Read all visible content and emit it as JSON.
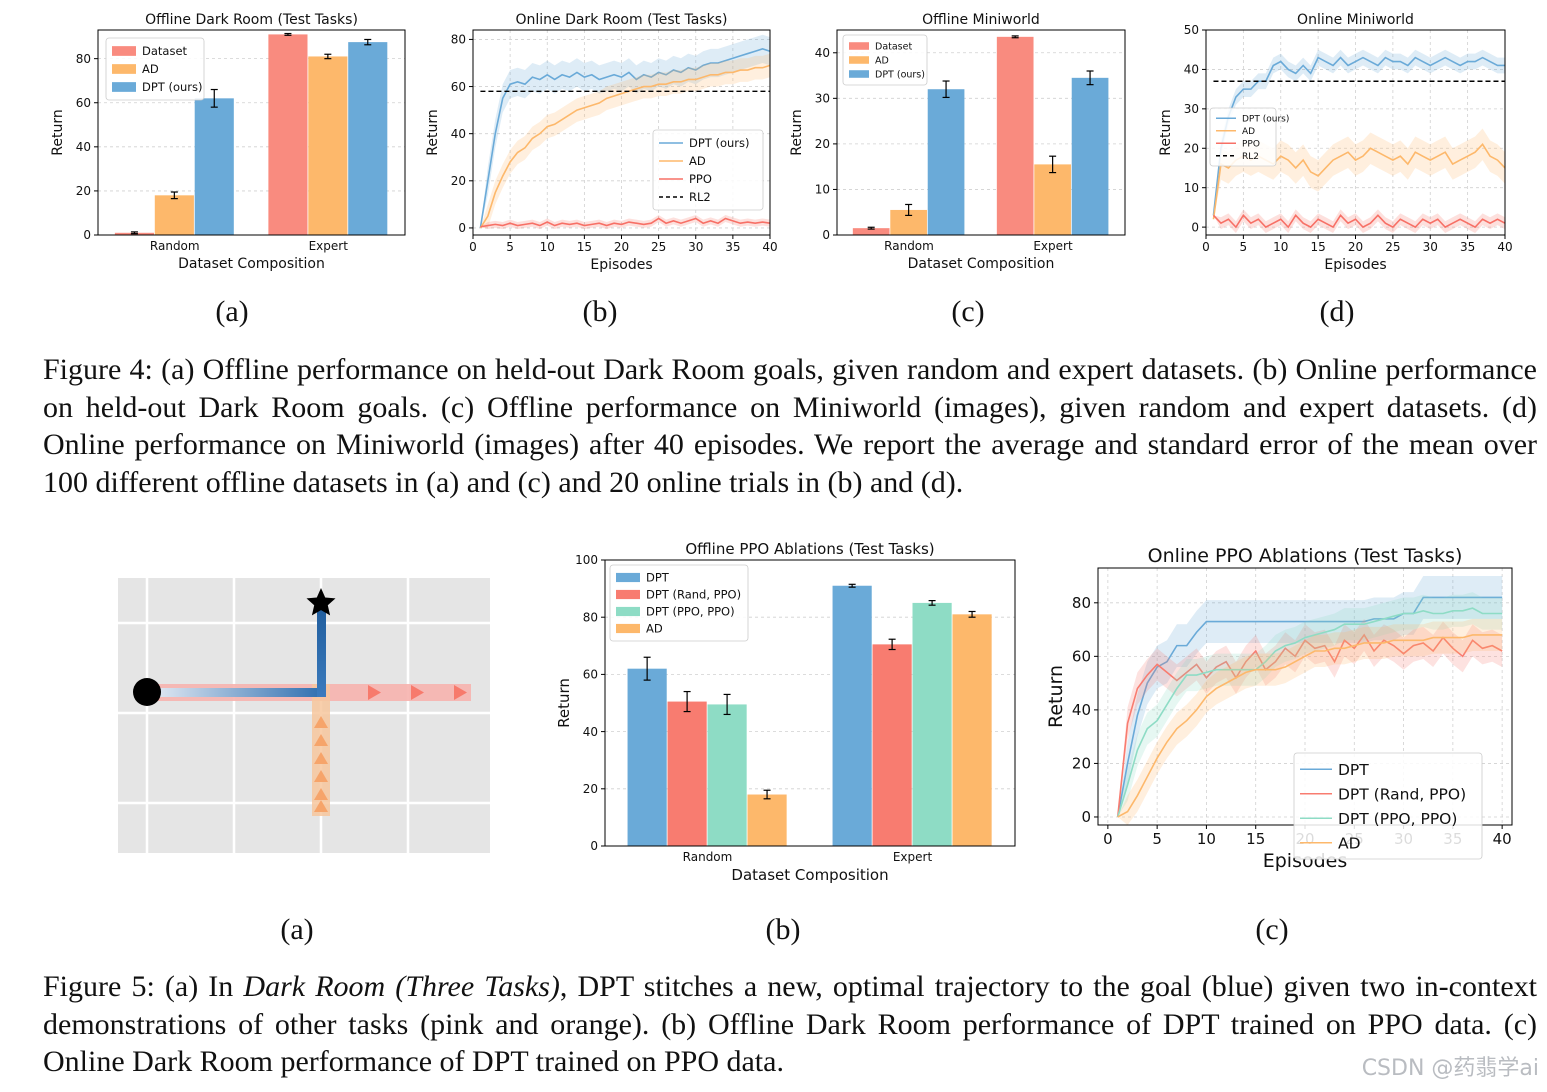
{
  "figure4": {
    "caption": {
      "label": "Figure 4:",
      "text": " (a) Offline performance on held-out Dark Room goals, given random and expert datasets. (b) Online performance on held-out Dark Room goals. (c) Offline performance on Miniworld (images), given random and expert datasets. (d) Online performance on Miniworld (images) after 40 episodes. We report the average and standard error of the mean over 100 different offline datasets in (a) and (c) and 20 online trials in (b) and (d)."
    },
    "sublabels": [
      "(a)",
      "(b)",
      "(c)",
      "(d)"
    ]
  },
  "figure5": {
    "caption": {
      "label": "Figure 5:",
      "text_before": " (a) In ",
      "text_italic": "Dark Room (Three Tasks)",
      "text_after": ", DPT stitches a new, optimal trajectory to the goal (blue) given two in-context demonstrations of other tasks (pink and orange). (b) Offline Dark Room performance of DPT trained on PPO data. (c) Online Dark Room performance of DPT trained on PPO data."
    },
    "sublabels": [
      "(a)",
      "(b)",
      "(c)"
    ],
    "grid_illustration": {
      "cols": 4,
      "rows": 3,
      "background": "#e5e5e5",
      "start_marker": "circle",
      "goal_marker": "star",
      "paths": [
        "pink horizontal demonstration",
        "orange vertical demonstration",
        "blue stitched trajectory"
      ]
    }
  },
  "colors": {
    "dataset": "#f98b7f",
    "ad": "#fdb86b",
    "dpt": "#6aaad8",
    "ppo": "#f77066",
    "dpt_rand_ppo": "#f87c70",
    "dpt_ppo_ppo": "#8edcc5",
    "rl2": "#000000"
  },
  "chart_data": [
    {
      "id": "fig4a",
      "type": "bar",
      "title": "Offline Dark Room (Test Tasks)",
      "xlabel": "Dataset Composition",
      "ylabel": "Return",
      "categories": [
        "Random",
        "Expert"
      ],
      "ylim": [
        0,
        93
      ],
      "yticks": [
        0,
        20,
        40,
        60,
        80
      ],
      "series": [
        {
          "name": "Dataset",
          "color": "#f98b7f",
          "values": [
            1,
            91
          ],
          "err": [
            0.4,
            0.4
          ]
        },
        {
          "name": "AD",
          "color": "#fdb86b",
          "values": [
            18,
            81
          ],
          "err": [
            1.5,
            1.0
          ]
        },
        {
          "name": "DPT (ours)",
          "color": "#6aaad8",
          "values": [
            62,
            87.5
          ],
          "err": [
            4,
            1.2
          ]
        }
      ],
      "legend": "top-left",
      "grid": true
    },
    {
      "id": "fig4b",
      "type": "line",
      "title": "Online Dark Room (Test Tasks)",
      "xlabel": "Episodes",
      "ylabel": "Return",
      "xlim": [
        0,
        40
      ],
      "ylim": [
        -3,
        84
      ],
      "xticks": [
        0,
        5,
        10,
        15,
        20,
        25,
        30,
        35,
        40
      ],
      "yticks": [
        0,
        20,
        40,
        60,
        80
      ],
      "x": [
        1,
        2,
        3,
        4,
        5,
        6,
        7,
        8,
        9,
        10,
        11,
        12,
        13,
        14,
        15,
        16,
        17,
        18,
        19,
        20,
        21,
        22,
        23,
        24,
        25,
        26,
        27,
        28,
        29,
        30,
        31,
        32,
        33,
        34,
        35,
        36,
        37,
        38,
        39,
        40
      ],
      "series": [
        {
          "name": "DPT (ours)",
          "color": "#6aaad8",
          "values": [
            0,
            20,
            40,
            55,
            61,
            62,
            61,
            64,
            63,
            65,
            63,
            65,
            64,
            66,
            64,
            65,
            63,
            64,
            65,
            64,
            66,
            63,
            65,
            64,
            66,
            65,
            67,
            66,
            68,
            67,
            69,
            70,
            70,
            71,
            72,
            73,
            74,
            75,
            76,
            75
          ],
          "err": 6
        },
        {
          "name": "AD",
          "color": "#fdb86b",
          "values": [
            0,
            5,
            15,
            22,
            28,
            32,
            34,
            38,
            40,
            43,
            44,
            46,
            48,
            50,
            51,
            52,
            53,
            55,
            56,
            57,
            58,
            59,
            60,
            60,
            61,
            61,
            62,
            62,
            63,
            63,
            64,
            65,
            65,
            66,
            66,
            67,
            67,
            68,
            68,
            69
          ],
          "err": 5
        },
        {
          "name": "PPO",
          "color": "#f77066",
          "values": [
            0.5,
            1,
            1.5,
            1,
            2,
            1,
            1.5,
            2,
            1,
            2.5,
            1,
            2,
            1.5,
            2,
            1,
            1.5,
            2,
            1,
            2,
            1.5,
            2.5,
            2,
            1.5,
            2,
            4,
            2,
            3,
            2,
            3,
            4,
            2,
            3,
            2,
            4,
            3,
            2,
            2.5,
            2,
            2.5,
            2
          ],
          "err": 1.5
        },
        {
          "name": "RL2",
          "color": "#000000",
          "dashed": true,
          "constant": 58
        }
      ],
      "legend": "center-right",
      "grid": true
    },
    {
      "id": "fig4c",
      "type": "bar",
      "title": "Offline Miniworld",
      "xlabel": "Dataset Composition",
      "ylabel": "Return",
      "categories": [
        "Random",
        "Expert"
      ],
      "ylim": [
        0,
        45
      ],
      "yticks": [
        0,
        10,
        20,
        30,
        40
      ],
      "series": [
        {
          "name": "Dataset",
          "color": "#f98b7f",
          "values": [
            1.5,
            43.5
          ],
          "err": [
            0.2,
            0.2
          ]
        },
        {
          "name": "AD",
          "color": "#fdb86b",
          "values": [
            5.5,
            15.5
          ],
          "err": [
            1.2,
            1.8
          ]
        },
        {
          "name": "DPT (ours)",
          "color": "#6aaad8",
          "values": [
            32,
            34.5
          ],
          "err": [
            1.8,
            1.5
          ]
        }
      ],
      "legend": "top-left",
      "grid": true
    },
    {
      "id": "fig4d",
      "type": "line",
      "title": "Online Miniworld",
      "xlabel": "Episodes",
      "ylabel": "Return",
      "xlim": [
        0,
        40
      ],
      "ylim": [
        -2,
        50
      ],
      "xticks": [
        0,
        5,
        10,
        15,
        20,
        25,
        30,
        35,
        40
      ],
      "yticks": [
        0,
        10,
        20,
        30,
        40,
        50
      ],
      "x": [
        1,
        2,
        3,
        4,
        5,
        6,
        7,
        8,
        9,
        10,
        11,
        12,
        13,
        14,
        15,
        16,
        17,
        18,
        19,
        20,
        21,
        22,
        23,
        24,
        25,
        26,
        27,
        28,
        29,
        30,
        31,
        32,
        33,
        34,
        35,
        36,
        37,
        38,
        39,
        40
      ],
      "series": [
        {
          "name": "DPT (ours)",
          "color": "#6aaad8",
          "values": [
            3,
            20,
            28,
            33,
            35,
            35,
            37,
            37,
            41,
            42,
            40,
            39,
            41,
            39,
            43,
            42,
            41,
            43,
            41,
            42,
            43,
            42,
            41,
            43,
            42,
            42,
            41,
            43,
            42,
            41,
            42,
            43,
            42,
            41,
            42,
            42,
            43,
            42,
            41,
            41
          ],
          "err": 2
        },
        {
          "name": "AD",
          "color": "#fdb86b",
          "values": [
            2,
            16,
            15,
            17,
            18,
            17,
            18,
            17,
            16,
            18,
            17,
            15,
            17,
            14,
            13,
            15,
            17,
            18,
            19,
            17,
            18,
            20,
            19,
            18,
            17,
            18,
            16,
            19,
            18,
            17,
            18,
            19,
            16,
            17,
            18,
            19,
            21,
            18,
            17,
            15
          ],
          "err": 4
        },
        {
          "name": "PPO",
          "color": "#f77066",
          "values": [
            3,
            1,
            2,
            0,
            3,
            1,
            2,
            0,
            1,
            2,
            0,
            3,
            1,
            0,
            2,
            1,
            0,
            3,
            1,
            2,
            0,
            1,
            3,
            1,
            0,
            2,
            1,
            0,
            2,
            1,
            2,
            0,
            1,
            2,
            1,
            0,
            2,
            1,
            2,
            1
          ],
          "err": 1.5
        },
        {
          "name": "RL2",
          "color": "#000000",
          "dashed": true,
          "constant": 37
        }
      ],
      "legend": "center-left",
      "grid": true
    },
    {
      "id": "fig5b",
      "type": "bar",
      "title": "Offline PPO Ablations (Test Tasks)",
      "xlabel": "Dataset Composition",
      "ylabel": "Return",
      "categories": [
        "Random",
        "Expert"
      ],
      "ylim": [
        0,
        100
      ],
      "yticks": [
        0,
        20,
        40,
        60,
        80,
        100
      ],
      "series": [
        {
          "name": "DPT",
          "color": "#6aaad8",
          "values": [
            62,
            91
          ],
          "err": [
            4,
            0.5
          ]
        },
        {
          "name": "DPT (Rand, PPO)",
          "color": "#f87c70",
          "values": [
            50.5,
            70.5
          ],
          "err": [
            3.5,
            1.8
          ]
        },
        {
          "name": "DPT (PPO, PPO)",
          "color": "#8edcc5",
          "values": [
            49.5,
            85
          ],
          "err": [
            3.5,
            0.8
          ]
        },
        {
          "name": "AD",
          "color": "#fdb86b",
          "values": [
            18,
            81
          ],
          "err": [
            1.5,
            1
          ]
        }
      ],
      "legend": "top-left",
      "grid": true
    },
    {
      "id": "fig5c",
      "type": "line",
      "title": "Online PPO Ablations (Test Tasks)",
      "xlabel": "Episodes",
      "ylabel": "Return",
      "xlim": [
        -1,
        41
      ],
      "ylim": [
        -3,
        93
      ],
      "xticks": [
        0,
        5,
        10,
        15,
        20,
        25,
        30,
        35,
        40
      ],
      "yticks": [
        0,
        20,
        40,
        60,
        80
      ],
      "x": [
        1,
        2,
        3,
        4,
        5,
        6,
        7,
        8,
        9,
        10,
        11,
        12,
        13,
        14,
        15,
        16,
        17,
        18,
        19,
        20,
        21,
        22,
        23,
        24,
        25,
        26,
        27,
        28,
        29,
        30,
        31,
        32,
        33,
        34,
        35,
        36,
        37,
        38,
        39,
        40
      ],
      "series": [
        {
          "name": "DPT",
          "color": "#6aaad8",
          "values": [
            0,
            20,
            38,
            50,
            56,
            58,
            64,
            64,
            69,
            73,
            73,
            73,
            73,
            73,
            73,
            73,
            73,
            73,
            73,
            73,
            73,
            73,
            73,
            73,
            73,
            73,
            74,
            74,
            74,
            76,
            76,
            82,
            82,
            82,
            82,
            82,
            82,
            82,
            82,
            82
          ],
          "err": 8
        },
        {
          "name": "DPT (Rand, PPO)",
          "color": "#f87c70",
          "values": [
            0,
            35,
            48,
            53,
            57,
            54,
            51,
            54,
            57,
            52,
            56,
            58,
            52,
            58,
            62,
            55,
            58,
            63,
            60,
            66,
            63,
            64,
            58,
            66,
            63,
            68,
            62,
            66,
            64,
            61,
            64,
            65,
            62,
            67,
            63,
            60,
            66,
            63,
            64,
            62
          ],
          "err": 6
        },
        {
          "name": "DPT (PPO, PPO)",
          "color": "#8edcc5",
          "values": [
            0,
            12,
            25,
            33,
            36,
            42,
            48,
            53,
            53,
            54,
            55,
            55,
            55,
            55,
            55,
            58,
            62,
            64,
            65,
            67,
            68,
            69,
            70,
            72,
            72,
            72,
            73,
            74,
            75,
            76,
            76,
            77,
            76,
            76,
            77,
            77,
            78,
            76,
            76,
            76
          ],
          "err": 6
        },
        {
          "name": "AD",
          "color": "#fdb86b",
          "values": [
            0,
            2,
            8,
            15,
            22,
            28,
            33,
            36,
            40,
            45,
            48,
            50,
            52,
            54,
            55,
            55,
            55,
            56,
            58,
            60,
            62,
            62,
            63,
            63,
            64,
            65,
            65,
            65,
            66,
            66,
            66,
            66,
            67,
            67,
            67,
            67,
            68,
            68,
            68,
            68
          ],
          "err": 6
        }
      ],
      "legend": "lower-right",
      "grid": true
    }
  ],
  "watermark": "CSDN @药翡学ai"
}
